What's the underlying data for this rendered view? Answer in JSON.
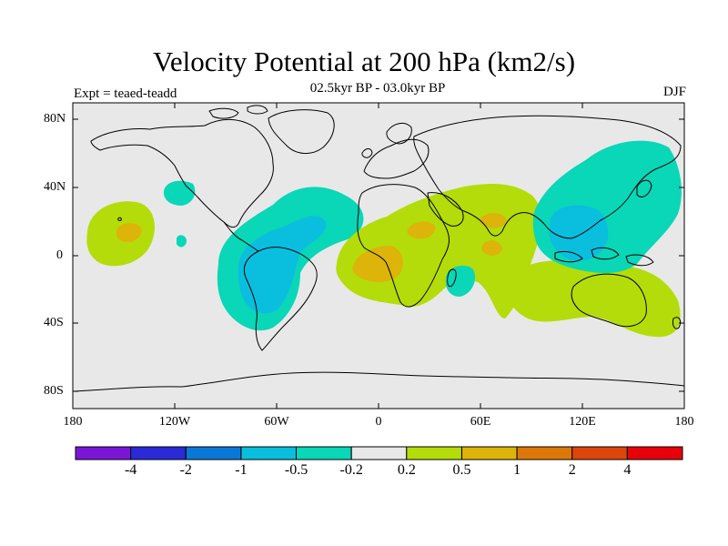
{
  "header": {
    "title": "Velocity Potential at 200 hPa (km2/s)",
    "subtitle": "02.5kyr BP - 03.0kyr BP",
    "left_label": "Expt = teaed-teadd",
    "right_label": "DJF"
  },
  "axes": {
    "lat_labels": [
      "80N",
      "40N",
      "0",
      "40S",
      "80S"
    ],
    "lat_values": [
      80,
      40,
      0,
      -40,
      -80
    ],
    "lon_labels": [
      "180",
      "120W",
      "60W",
      "0",
      "60E",
      "120E",
      "180"
    ],
    "lon_values": [
      -180,
      -120,
      -60,
      0,
      60,
      120,
      180
    ]
  },
  "colorbar": {
    "colors": [
      "#7a17d6",
      "#2a2ad6",
      "#0a78d6",
      "#0abede",
      "#0ad6b8",
      "#e8e8e8",
      "#b4dc0a",
      "#dcb40a",
      "#dc780a",
      "#dc460a",
      "#e8000a"
    ],
    "labels": [
      "-4",
      "-2",
      "-1",
      "-0.5",
      "-0.2",
      "0.2",
      "0.5",
      "1",
      "2",
      "4"
    ]
  },
  "colors": {
    "ocean": "#e8e8e8",
    "neg_weak": "#0ad6b8",
    "neg_mid": "#0abede",
    "neg_strong": "#0a9ede",
    "pos_weak": "#b4dc0a",
    "pos_mid": "#dcb40a"
  }
}
